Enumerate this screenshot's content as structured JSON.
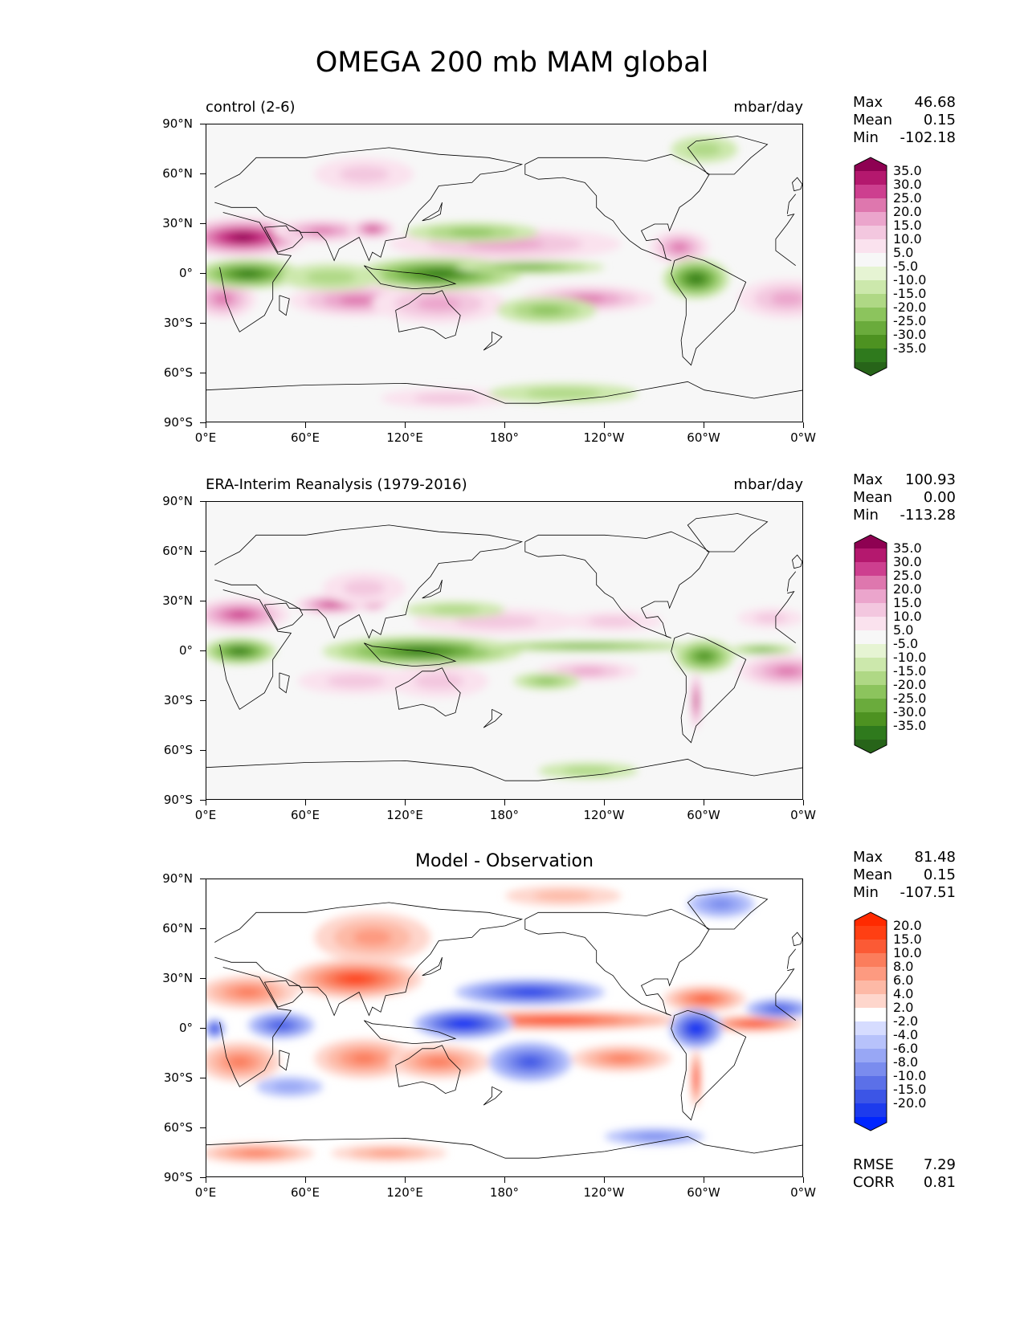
{
  "title": "OMEGA 200 mb MAM global",
  "axes": {
    "lat_labels": [
      "90°N",
      "60°N",
      "30°N",
      "0°",
      "30°S",
      "60°S",
      "90°S"
    ],
    "lon_labels": [
      "0°E",
      "60°E",
      "120°E",
      "180°",
      "120°W",
      "60°W",
      "0°W"
    ]
  },
  "panels": [
    {
      "id": "control",
      "left_label": "control (2-6)",
      "right_label": "mbar/day",
      "center_label": "",
      "stats": [
        {
          "name": "Max",
          "value": "46.68"
        },
        {
          "name": "Mean",
          "value": "0.15"
        },
        {
          "name": "Min",
          "value": "-102.18"
        }
      ],
      "colorbar": {
        "labels": [
          "35.0",
          "30.0",
          "25.0",
          "20.0",
          "15.0",
          "10.0",
          "5.0",
          "-5.0",
          "-10.0",
          "-15.0",
          "-20.0",
          "-25.0",
          "-30.0",
          "-35.0"
        ],
        "colors": [
          "#8e0152",
          "#b4186e",
          "#cd3f8f",
          "#de77ae",
          "#eba5cc",
          "#f3c7df",
          "#fae2ee",
          "#f7f7f7",
          "#e6f4d3",
          "#cce8ac",
          "#afd885",
          "#8cc45d",
          "#6aab3c",
          "#4d9221",
          "#2f7a1d",
          "#276419"
        ]
      },
      "features": [
        {
          "type": "pos",
          "lon": 22,
          "lat": 22,
          "rx": 40,
          "ry": 12,
          "level": 0.95
        },
        {
          "type": "pos",
          "lon": 70,
          "lat": 26,
          "rx": 30,
          "ry": 7,
          "level": 0.6
        },
        {
          "type": "pos",
          "lon": 100,
          "lat": 27,
          "rx": 14,
          "ry": 6,
          "level": 0.75
        },
        {
          "type": "pos",
          "lon": 95,
          "lat": 60,
          "rx": 30,
          "ry": 10,
          "level": 0.3
        },
        {
          "type": "pos",
          "lon": 180,
          "lat": 18,
          "rx": 70,
          "ry": 10,
          "level": 0.4
        },
        {
          "type": "pos",
          "lon": 90,
          "lat": -16,
          "rx": 40,
          "ry": 10,
          "level": 0.6
        },
        {
          "type": "pos",
          "lon": 140,
          "lat": -18,
          "rx": 40,
          "ry": 12,
          "level": 0.45
        },
        {
          "type": "pos",
          "lon": 230,
          "lat": -15,
          "rx": 40,
          "ry": 8,
          "level": 0.5
        },
        {
          "type": "pos",
          "lon": 285,
          "lat": 16,
          "rx": 18,
          "ry": 10,
          "level": 0.6
        },
        {
          "type": "pos",
          "lon": 350,
          "lat": -15,
          "rx": 30,
          "ry": 12,
          "level": 0.45
        },
        {
          "type": "pos",
          "lon": 10,
          "lat": -15,
          "rx": 20,
          "ry": 12,
          "level": 0.5
        },
        {
          "type": "pos",
          "lon": 145,
          "lat": -75,
          "rx": 40,
          "ry": 6,
          "level": 0.3
        },
        {
          "type": "neg",
          "lon": 25,
          "lat": 0,
          "rx": 32,
          "ry": 9,
          "level": 0.9
        },
        {
          "type": "neg",
          "lon": 140,
          "lat": 0,
          "rx": 50,
          "ry": 10,
          "level": 0.9
        },
        {
          "type": "neg",
          "lon": 195,
          "lat": 4,
          "rx": 45,
          "ry": 4,
          "level": 0.6
        },
        {
          "type": "neg",
          "lon": 295,
          "lat": -3,
          "rx": 20,
          "ry": 12,
          "level": 0.85
        },
        {
          "type": "neg",
          "lon": 160,
          "lat": 25,
          "rx": 40,
          "ry": 6,
          "level": 0.4
        },
        {
          "type": "neg",
          "lon": 205,
          "lat": -22,
          "rx": 30,
          "ry": 8,
          "level": 0.45
        },
        {
          "type": "neg",
          "lon": 75,
          "lat": -2,
          "rx": 30,
          "ry": 8,
          "level": 0.35
        },
        {
          "type": "neg",
          "lon": 300,
          "lat": 75,
          "rx": 20,
          "ry": 8,
          "level": 0.35
        },
        {
          "type": "neg",
          "lon": 215,
          "lat": -72,
          "rx": 45,
          "ry": 6,
          "level": 0.25
        }
      ]
    },
    {
      "id": "obs",
      "left_label": "ERA-Interim Reanalysis (1979-2016)",
      "right_label": "mbar/day",
      "center_label": "",
      "stats": [
        {
          "name": "Max",
          "value": "100.93"
        },
        {
          "name": "Mean",
          "value": "0.00"
        },
        {
          "name": "Min",
          "value": "-113.28"
        }
      ],
      "colorbar": {
        "labels": [
          "35.0",
          "30.0",
          "25.0",
          "20.0",
          "15.0",
          "10.0",
          "5.0",
          "-5.0",
          "-10.0",
          "-15.0",
          "-20.0",
          "-25.0",
          "-30.0",
          "-35.0"
        ],
        "colors": [
          "#8e0152",
          "#b4186e",
          "#cd3f8f",
          "#de77ae",
          "#eba5cc",
          "#f3c7df",
          "#fae2ee",
          "#f7f7f7",
          "#e6f4d3",
          "#cce8ac",
          "#afd885",
          "#8cc45d",
          "#6aab3c",
          "#4d9221",
          "#2f7a1d",
          "#276419"
        ]
      },
      "features": [
        {
          "type": "pos",
          "lon": 20,
          "lat": 22,
          "rx": 30,
          "ry": 10,
          "level": 0.75
        },
        {
          "type": "pos",
          "lon": 75,
          "lat": 28,
          "rx": 22,
          "ry": 6,
          "level": 0.7
        },
        {
          "type": "pos",
          "lon": 100,
          "lat": 30,
          "rx": 10,
          "ry": 6,
          "level": 0.8
        },
        {
          "type": "pos",
          "lon": 95,
          "lat": 38,
          "rx": 25,
          "ry": 10,
          "level": 0.25
        },
        {
          "type": "pos",
          "lon": 175,
          "lat": 18,
          "rx": 50,
          "ry": 8,
          "level": 0.35
        },
        {
          "type": "pos",
          "lon": 245,
          "lat": 18,
          "rx": 30,
          "ry": 6,
          "level": 0.3
        },
        {
          "type": "pos",
          "lon": 90,
          "lat": -18,
          "rx": 35,
          "ry": 8,
          "level": 0.35
        },
        {
          "type": "pos",
          "lon": 140,
          "lat": -18,
          "rx": 30,
          "ry": 10,
          "level": 0.3
        },
        {
          "type": "pos",
          "lon": 230,
          "lat": -12,
          "rx": 30,
          "ry": 6,
          "level": 0.4
        },
        {
          "type": "pos",
          "lon": 350,
          "lat": -12,
          "rx": 30,
          "ry": 10,
          "level": 0.5
        },
        {
          "type": "pos",
          "lon": 295,
          "lat": -30,
          "rx": 3,
          "ry": 18,
          "level": 0.9
        },
        {
          "type": "pos",
          "lon": 340,
          "lat": 20,
          "rx": 20,
          "ry": 6,
          "level": 0.35
        },
        {
          "type": "neg",
          "lon": 20,
          "lat": 0,
          "rx": 22,
          "ry": 8,
          "level": 0.9
        },
        {
          "type": "neg",
          "lon": 130,
          "lat": 0,
          "rx": 60,
          "ry": 9,
          "level": 0.8
        },
        {
          "type": "neg",
          "lon": 230,
          "lat": 3,
          "rx": 70,
          "ry": 3,
          "level": 0.55
        },
        {
          "type": "neg",
          "lon": 300,
          "lat": -3,
          "rx": 18,
          "ry": 10,
          "level": 0.7
        },
        {
          "type": "neg",
          "lon": 335,
          "lat": 1,
          "rx": 20,
          "ry": 3,
          "level": 0.6
        },
        {
          "type": "neg",
          "lon": 150,
          "lat": 25,
          "rx": 30,
          "ry": 5,
          "level": 0.35
        },
        {
          "type": "neg",
          "lon": 205,
          "lat": -18,
          "rx": 20,
          "ry": 5,
          "level": 0.4
        },
        {
          "type": "neg",
          "lon": 230,
          "lat": -72,
          "rx": 30,
          "ry": 5,
          "level": 0.25
        }
      ]
    },
    {
      "id": "diff",
      "left_label": "",
      "right_label": "",
      "center_label": "Model - Observation",
      "stats": [
        {
          "name": "Max",
          "value": "81.48"
        },
        {
          "name": "Mean",
          "value": "0.15"
        },
        {
          "name": "Min",
          "value": "-107.51"
        }
      ],
      "extra_stats": [
        {
          "name": "RMSE",
          "value": "7.29"
        },
        {
          "name": "CORR",
          "value": "0.81"
        }
      ],
      "colorbar": {
        "labels": [
          "20.0",
          "15.0",
          "10.0",
          "8.0",
          "6.0",
          "4.0",
          "2.0",
          "-2.0",
          "-4.0",
          "-6.0",
          "-8.0",
          "-10.0",
          "-15.0",
          "-20.0"
        ],
        "colors": [
          "#ff2a00",
          "#ff3f13",
          "#fb5a35",
          "#fb7d5c",
          "#fd9a80",
          "#fdb9a6",
          "#fed6cc",
          "#ffffff",
          "#d6dcff",
          "#b7c2fb",
          "#98a7f5",
          "#7a8cee",
          "#5b70e8",
          "#3c55e6",
          "#1d3bed",
          "#0025ff"
        ]
      },
      "features": [
        {
          "type": "pos",
          "lon": 90,
          "lat": 30,
          "rx": 40,
          "ry": 12,
          "level": 0.8
        },
        {
          "type": "pos",
          "lon": 100,
          "lat": 55,
          "rx": 35,
          "ry": 15,
          "level": 0.4
        },
        {
          "type": "pos",
          "lon": 25,
          "lat": 22,
          "rx": 30,
          "ry": 10,
          "level": 0.6
        },
        {
          "type": "pos",
          "lon": 210,
          "lat": 5,
          "rx": 80,
          "ry": 6,
          "level": 0.9
        },
        {
          "type": "pos",
          "lon": 330,
          "lat": 3,
          "rx": 30,
          "ry": 5,
          "level": 0.85
        },
        {
          "type": "pos",
          "lon": 300,
          "lat": 18,
          "rx": 25,
          "ry": 8,
          "level": 0.75
        },
        {
          "type": "pos",
          "lon": 95,
          "lat": -18,
          "rx": 30,
          "ry": 12,
          "level": 0.6
        },
        {
          "type": "pos",
          "lon": 140,
          "lat": -20,
          "rx": 30,
          "ry": 10,
          "level": 0.5
        },
        {
          "type": "pos",
          "lon": 250,
          "lat": -18,
          "rx": 30,
          "ry": 8,
          "level": 0.5
        },
        {
          "type": "pos",
          "lon": 295,
          "lat": -30,
          "rx": 3,
          "ry": 18,
          "level": 0.95
        },
        {
          "type": "pos",
          "lon": 20,
          "lat": -20,
          "rx": 25,
          "ry": 12,
          "level": 0.5
        },
        {
          "type": "pos",
          "lon": 30,
          "lat": -75,
          "rx": 35,
          "ry": 6,
          "level": 0.5
        },
        {
          "type": "pos",
          "lon": 110,
          "lat": -75,
          "rx": 35,
          "ry": 5,
          "level": 0.4
        },
        {
          "type": "pos",
          "lon": 215,
          "lat": 80,
          "rx": 35,
          "ry": 6,
          "level": 0.3
        },
        {
          "type": "neg",
          "lon": 155,
          "lat": 3,
          "rx": 30,
          "ry": 9,
          "level": 0.95
        },
        {
          "type": "neg",
          "lon": 195,
          "lat": 22,
          "rx": 45,
          "ry": 8,
          "level": 0.8
        },
        {
          "type": "neg",
          "lon": 295,
          "lat": 0,
          "rx": 16,
          "ry": 12,
          "level": 0.95
        },
        {
          "type": "neg",
          "lon": 45,
          "lat": 2,
          "rx": 20,
          "ry": 8,
          "level": 0.65
        },
        {
          "type": "neg",
          "lon": 5,
          "lat": 0,
          "rx": 6,
          "ry": 6,
          "level": 0.85
        },
        {
          "type": "neg",
          "lon": 195,
          "lat": -20,
          "rx": 25,
          "ry": 12,
          "level": 0.7
        },
        {
          "type": "neg",
          "lon": 345,
          "lat": 12,
          "rx": 20,
          "ry": 6,
          "level": 0.7
        },
        {
          "type": "neg",
          "lon": 310,
          "lat": 75,
          "rx": 20,
          "ry": 8,
          "level": 0.45
        },
        {
          "type": "neg",
          "lon": 50,
          "lat": -35,
          "rx": 20,
          "ry": 6,
          "level": 0.35
        },
        {
          "type": "neg",
          "lon": 270,
          "lat": -65,
          "rx": 30,
          "ry": 5,
          "level": 0.4
        }
      ]
    }
  ]
}
